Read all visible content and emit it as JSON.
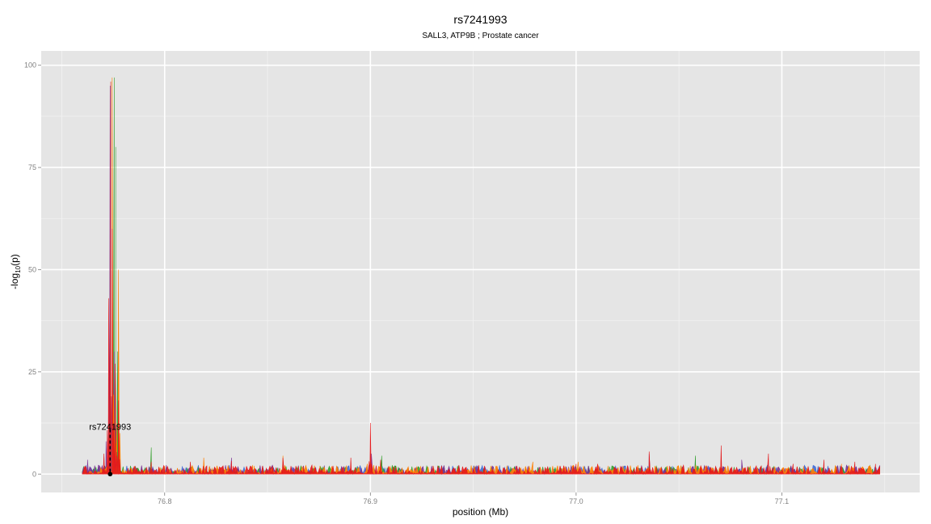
{
  "chart_data": {
    "type": "area",
    "title": "rs7241993",
    "subtitle": "SALL3, ATP9B ; Prostate cancer",
    "xlabel": "position (Mb)",
    "ylabel_main": "-log",
    "ylabel_sub": "10",
    "ylabel_tail": "(p)",
    "xlim": [
      76.74,
      77.167
    ],
    "ylim": [
      -4.5,
      103.5
    ],
    "x_ticks": [
      76.8,
      76.9,
      77.0,
      77.1
    ],
    "x_tick_labels": [
      "76.8",
      "76.9",
      "77.0",
      "77.1"
    ],
    "y_ticks": [
      0,
      25,
      50,
      75,
      100
    ],
    "y_tick_labels": [
      "0",
      "25",
      "50",
      "75",
      "100"
    ],
    "grid": true,
    "legend": "none",
    "colors": {
      "panel": "#e5e5e5",
      "grid_major": "#ffffff",
      "grid_minor": "#f2f2f2",
      "tick_text": "#7f7f7f"
    },
    "noise_range": [
      76.76,
      77.148
    ],
    "series": [
      {
        "color": "#e41a1c",
        "peaks": [
          [
            76.7705,
            5
          ],
          [
            76.7728,
            43
          ],
          [
            76.7738,
            96
          ],
          [
            76.7745,
            60
          ],
          [
            76.776,
            27
          ],
          [
            76.7775,
            18
          ],
          [
            76.7935,
            3
          ],
          [
            76.8125,
            3
          ],
          [
            76.8205,
            2
          ],
          [
            76.8325,
            3.2
          ],
          [
            76.8575,
            4
          ],
          [
            76.8675,
            2
          ],
          [
            76.8905,
            4
          ],
          [
            76.9,
            12.5
          ],
          [
            76.905,
            3.5
          ],
          [
            76.9305,
            2
          ],
          [
            76.9555,
            2
          ],
          [
            77.0,
            2.5
          ],
          [
            77.0105,
            2.5
          ],
          [
            77.025,
            2
          ],
          [
            77.0355,
            5.5
          ],
          [
            77.0455,
            2
          ],
          [
            77.0705,
            7
          ],
          [
            77.09,
            2
          ],
          [
            77.0935,
            5
          ],
          [
            77.1055,
            2.5
          ],
          [
            77.1205,
            3.5
          ],
          [
            77.1355,
            3
          ],
          [
            77.1455,
            2.5
          ]
        ]
      },
      {
        "color": "#ff7f00",
        "peaks": [
          [
            76.7745,
            97
          ],
          [
            76.7775,
            50
          ],
          [
            76.7855,
            2
          ],
          [
            76.8,
            2
          ],
          [
            76.819,
            4
          ],
          [
            76.8435,
            2
          ],
          [
            76.8575,
            4.5
          ],
          [
            76.8755,
            2
          ],
          [
            76.8985,
            2.5
          ],
          [
            76.9305,
            2
          ],
          [
            76.9505,
            2
          ],
          [
            76.979,
            3
          ],
          [
            77.001,
            3
          ],
          [
            77.0155,
            2
          ],
          [
            77.0555,
            2
          ],
          [
            77.0705,
            2.5
          ],
          [
            77.1105,
            2
          ],
          [
            77.129,
            2.5
          ]
        ]
      },
      {
        "color": "#7b3294",
        "peaks": [
          [
            76.7625,
            3.5
          ],
          [
            76.7715,
            8
          ],
          [
            76.7735,
            95
          ],
          [
            76.7755,
            30
          ],
          [
            76.8325,
            4
          ],
          [
            76.8555,
            1.5
          ],
          [
            76.9005,
            5
          ],
          [
            76.9495,
            1.5
          ],
          [
            77.0355,
            5
          ],
          [
            77.0605,
            1.5
          ],
          [
            77.0805,
            3.5
          ],
          [
            77.1105,
            1.5
          ]
        ]
      },
      {
        "color": "#33a02c",
        "peaks": [
          [
            76.7735,
            55
          ],
          [
            76.7755,
            97
          ],
          [
            76.7762,
            80
          ],
          [
            76.7772,
            30
          ],
          [
            76.7935,
            6.5
          ],
          [
            76.7985,
            1.5
          ],
          [
            76.8005,
            1
          ],
          [
            76.9055,
            4.5
          ],
          [
            77.058,
            4.5
          ],
          [
            77.0605,
            1.5
          ]
        ]
      },
      {
        "color": "#3f6bd6",
        "peaks": [
          [
            76.7745,
            40
          ],
          [
            76.7765,
            12
          ],
          [
            77.0805,
            2.5
          ],
          [
            77.0355,
            2
          ]
        ]
      }
    ],
    "highlight": {
      "label": "rs7241993",
      "x": 76.7735,
      "y": 0,
      "line_top": 11
    }
  }
}
